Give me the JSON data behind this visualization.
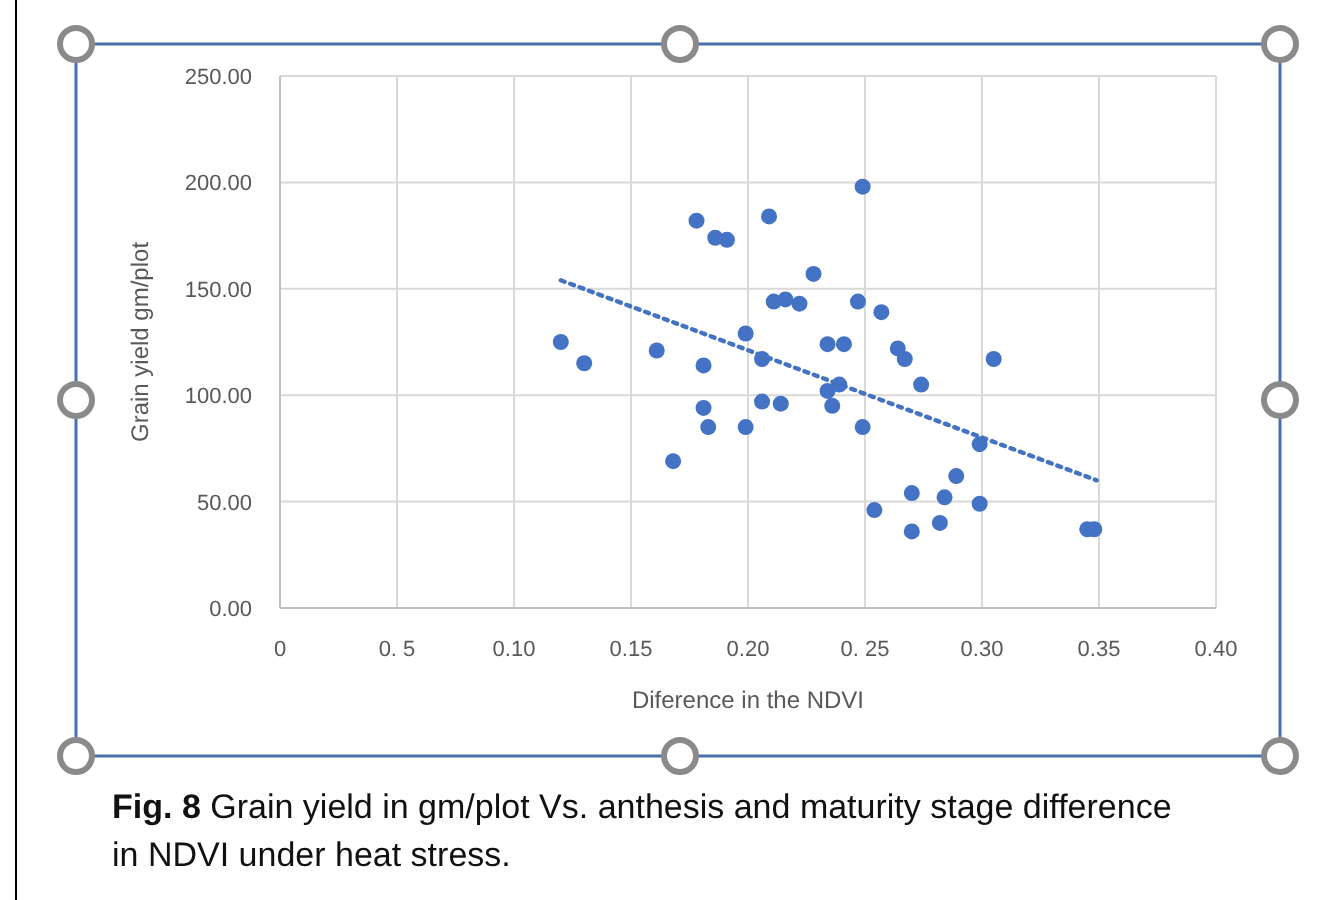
{
  "chart_data": {
    "type": "scatter",
    "xlabel": "Diference in the NDVI",
    "ylabel": "Grain yield gm/plot",
    "annotations": [
      "Fig. 8",
      "Grain yield in gm/plot Vs. anthesis and maturity stage difference in NDVI under heat stress."
    ],
    "xlim": [
      0,
      0.4
    ],
    "ylim": [
      0,
      250
    ],
    "xticks": [
      0,
      {
        "value": 0.05,
        "label": "0. 5"
      },
      {
        "value": 0.1,
        "label": "0.10"
      },
      {
        "value": 0.15,
        "label": "0.15"
      },
      {
        "value": 0.2,
        "label": "0.20"
      },
      {
        "value": 0.25,
        "label": "0. 25"
      },
      {
        "value": 0.3,
        "label": "0.30"
      },
      {
        "value": 0.35,
        "label": "0.35"
      },
      {
        "value": 0.4,
        "label": "0.40"
      }
    ],
    "yticks": [
      {
        "value": 0,
        "label": "0.00"
      },
      {
        "value": 50,
        "label": "50.00"
      },
      {
        "value": 100,
        "label": "100.00"
      },
      {
        "value": 150,
        "label": "150.00"
      },
      {
        "value": 200,
        "label": "200.00"
      },
      {
        "value": 250,
        "label": "250.00"
      }
    ],
    "grid": true,
    "series": [
      {
        "color": "#4472c4",
        "marker": "circle",
        "x": [
          0.12,
          0.13,
          0.161,
          0.168,
          0.178,
          0.186,
          0.191,
          0.181,
          0.181,
          0.183,
          0.199,
          0.199,
          0.206,
          0.206,
          0.209,
          0.211,
          0.216,
          0.222,
          0.214,
          0.228,
          0.234,
          0.241,
          0.234,
          0.239,
          0.236,
          0.247,
          0.249,
          0.249,
          0.257,
          0.264,
          0.267,
          0.274,
          0.305,
          0.299,
          0.254,
          0.27,
          0.27,
          0.282,
          0.284,
          0.289,
          0.299,
          0.345,
          0.348
        ],
        "values": [
          125,
          115,
          121,
          69,
          182,
          174,
          173,
          114,
          94,
          85,
          129,
          85,
          117,
          97,
          184,
          144,
          145,
          143,
          96,
          157,
          124,
          124,
          102,
          105,
          95,
          144,
          198,
          85,
          139,
          122,
          117,
          105,
          117,
          77,
          46,
          54,
          36,
          40,
          52,
          62,
          49,
          37,
          37
        ]
      },
      {
        "type": "line",
        "color": "#4472c4",
        "line_style": "dotted",
        "marker": "none",
        "x": [
          0.12,
          0.349
        ],
        "values": [
          154,
          60
        ]
      }
    ]
  }
}
